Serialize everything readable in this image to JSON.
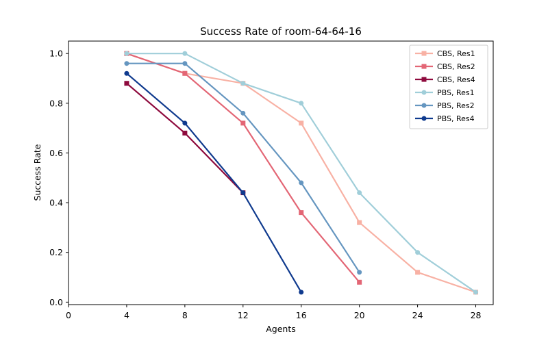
{
  "chart_data": {
    "type": "line",
    "title": "Success Rate of room-64-64-16",
    "xlabel": "Agents",
    "ylabel": "Success Rate",
    "xlim": [
      0,
      29.2
    ],
    "ylim": [
      -0.01,
      1.05
    ],
    "xticks": [
      0,
      4,
      8,
      12,
      16,
      20,
      24,
      28
    ],
    "yticks": [
      0.0,
      0.2,
      0.4,
      0.6,
      0.8,
      1.0
    ],
    "ytick_labels": [
      "0.0",
      "0.2",
      "0.4",
      "0.6",
      "0.8",
      "1.0"
    ],
    "grid": false,
    "legend_position": "top-right",
    "series": [
      {
        "name": "CBS, Res1",
        "color": "#f8b1a4",
        "marker": "square",
        "x": [
          4,
          8,
          12,
          16,
          20,
          24,
          28
        ],
        "values": [
          1.0,
          0.92,
          0.88,
          0.72,
          0.32,
          0.12,
          0.04
        ]
      },
      {
        "name": "CBS, Res2",
        "color": "#e36675",
        "marker": "square",
        "x": [
          4,
          8,
          12,
          16,
          20
        ],
        "values": [
          1.0,
          0.92,
          0.72,
          0.36,
          0.08
        ]
      },
      {
        "name": "CBS, Res4",
        "color": "#8e0a3d",
        "marker": "square",
        "x": [
          4,
          8,
          12
        ],
        "values": [
          0.88,
          0.68,
          0.44
        ]
      },
      {
        "name": "PBS, Res1",
        "color": "#a0ced9",
        "marker": "circle",
        "x": [
          4,
          8,
          12,
          16,
          20,
          24,
          28
        ],
        "values": [
          1.0,
          1.0,
          0.88,
          0.8,
          0.44,
          0.2,
          0.04
        ]
      },
      {
        "name": "PBS, Res2",
        "color": "#6596c0",
        "marker": "circle",
        "x": [
          4,
          8,
          12,
          16,
          20
        ],
        "values": [
          0.96,
          0.96,
          0.76,
          0.48,
          0.12
        ]
      },
      {
        "name": "PBS, Res4",
        "color": "#0f3a8e",
        "marker": "circle",
        "x": [
          4,
          8,
          12,
          16
        ],
        "values": [
          0.92,
          0.72,
          0.44,
          0.04
        ]
      }
    ]
  }
}
